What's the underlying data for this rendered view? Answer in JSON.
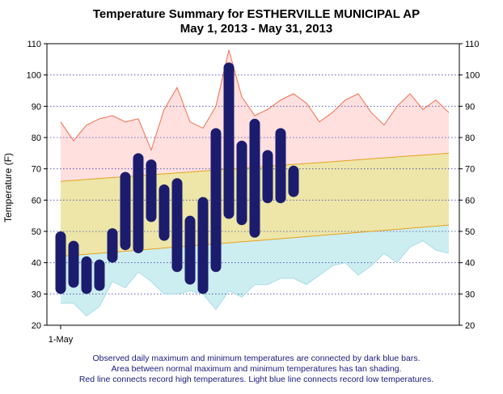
{
  "chart_data": {
    "type": "bar",
    "title": "Temperature Summary for ESTHERVILLE MUNICIPAL AP",
    "subtitle": "May  1, 2013 - May 31, 2013",
    "ylabel": "Temperature (F)",
    "ylim": [
      20,
      110
    ],
    "y_ticks": [
      20,
      30,
      40,
      50,
      60,
      70,
      80,
      90,
      100,
      110
    ],
    "y_tick_labels": [
      "20",
      "30",
      "40",
      "50",
      "60",
      "70",
      "80",
      "90",
      "100",
      "110"
    ],
    "x_tick_label": "1-May",
    "x_day_range": [
      1,
      31
    ],
    "grid": "horizontal-dotted",
    "observed": {
      "days": [
        1,
        2,
        3,
        4,
        5,
        6,
        7,
        8,
        9,
        10,
        11,
        12,
        13,
        14,
        15,
        16,
        17,
        18,
        19
      ],
      "max": [
        50,
        47,
        42,
        41,
        51,
        69,
        75,
        73,
        65,
        67,
        55,
        61,
        83,
        104,
        79,
        86,
        76,
        83,
        71
      ],
      "min": [
        30,
        32,
        30,
        31,
        40,
        44,
        43,
        53,
        47,
        37,
        33,
        30,
        37,
        54,
        52,
        48,
        59,
        59,
        61
      ]
    },
    "normal": {
      "max_start": 66,
      "max_end": 75,
      "min_start": 42,
      "min_end": 52
    },
    "record_high": [
      85,
      79,
      84,
      86,
      87,
      85,
      86,
      76,
      89,
      96,
      85,
      83,
      90,
      108,
      93,
      87,
      89,
      92,
      94,
      91,
      85,
      88,
      92,
      94,
      88,
      84,
      90,
      94,
      89,
      92,
      88
    ],
    "record_low": [
      27,
      27,
      23,
      26,
      34,
      32,
      37,
      34,
      30,
      30,
      31,
      30,
      25,
      31,
      29,
      33,
      33,
      35,
      35,
      33,
      36,
      39,
      40,
      36,
      39,
      43,
      40,
      45,
      47,
      44,
      43
    ],
    "colors": {
      "observed_bar": "#1c1c6e",
      "record_high_line": "#f0704e",
      "record_high_fill": "#ffe0df",
      "normal_fill": "#ede6a8",
      "normal_line": "#e8a020",
      "record_low_fill": "#cdeef0",
      "record_low_line": "#a8dce8",
      "grid": "#4444aa",
      "caption_text": "#1a1a80"
    },
    "caption": [
      "Observed daily maximum and minimum temperatures are connected by dark blue bars.",
      "Area between normal maximum and minimum temperatures has tan shading.",
      "Red line connects record high temperatures. Light blue line connects record low temperatures."
    ]
  }
}
